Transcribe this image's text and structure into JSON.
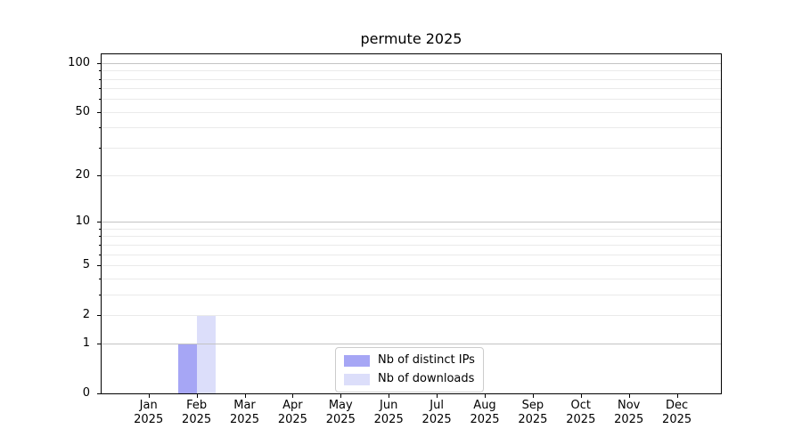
{
  "chart_data": {
    "type": "bar",
    "title": "permute 2025",
    "year": "2025",
    "categories": [
      "Jan",
      "Feb",
      "Mar",
      "Apr",
      "May",
      "Jun",
      "Jul",
      "Aug",
      "Sep",
      "Oct",
      "Nov",
      "Dec"
    ],
    "series": [
      {
        "name": "Nb of distinct IPs",
        "color": "#a6a6f5",
        "values": [
          0,
          1,
          0,
          0,
          0,
          0,
          0,
          0,
          0,
          0,
          0,
          0
        ]
      },
      {
        "name": "Nb of downloads",
        "color": "#dcdefa",
        "values": [
          0,
          2,
          0,
          0,
          0,
          0,
          0,
          0,
          0,
          0,
          0,
          0
        ]
      }
    ],
    "y_axis": {
      "scale": "log1p",
      "min": 0,
      "max": 113,
      "tick_values": [
        0,
        1,
        2,
        5,
        10,
        20,
        50,
        100
      ],
      "major_gridline_values": [
        1,
        10,
        100
      ],
      "minor_gridline_values": [
        2,
        3,
        4,
        5,
        6,
        7,
        8,
        9,
        20,
        30,
        40,
        50,
        60,
        70,
        80,
        90
      ]
    },
    "grid": true,
    "legend_position": "inside lower-center"
  },
  "colors": {
    "background": "#ffffff",
    "axis": "#000000",
    "major_grid": "#c3c3c3",
    "minor_grid": "#eaeaea",
    "legend_border": "#cccccc"
  }
}
